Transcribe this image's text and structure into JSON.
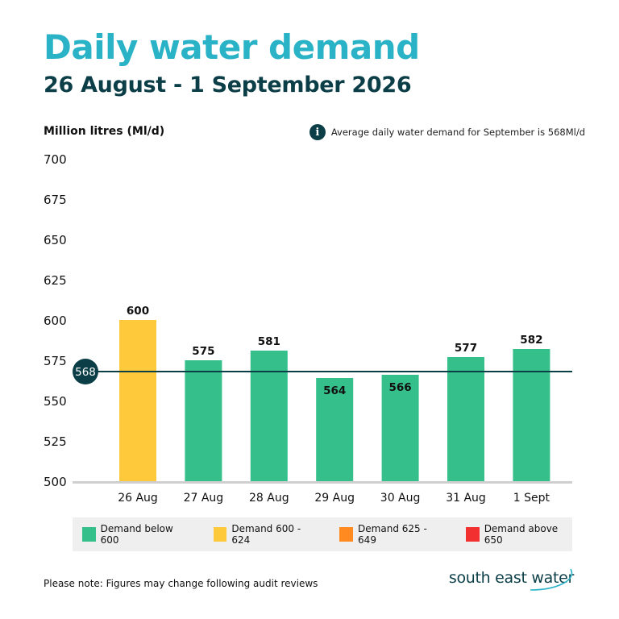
{
  "title": "Daily water demand",
  "subtitle": "26 August - 1 September 2026",
  "unit_label": "Million litres (Ml/d)",
  "info_text": "Average daily water demand for September is 568Ml/d",
  "info_icon": "info-icon",
  "note": "Please note: Figures may change following audit reviews",
  "logo_text": "south east water",
  "chart_data": {
    "type": "bar",
    "categories": [
      "26 Aug",
      "27 Aug",
      "28 Aug",
      "29 Aug",
      "30 Aug",
      "31 Aug",
      "1 Sept"
    ],
    "values": [
      600,
      575,
      581,
      564,
      566,
      577,
      582
    ],
    "bar_colors": [
      "#ffc93c",
      "#35c08b",
      "#35c08b",
      "#35c08b",
      "#35c08b",
      "#35c08b",
      "#35c08b"
    ],
    "ylim": [
      500,
      700
    ],
    "yticks": [
      700,
      675,
      650,
      625,
      600,
      575,
      550,
      525,
      500
    ],
    "grid": false,
    "reference_line": {
      "value": 568,
      "label": "568",
      "color": "#0b3e47"
    },
    "legend_position": "bottom",
    "legend": [
      {
        "label": "Demand below 600",
        "color": "#35c08b"
      },
      {
        "label": "Demand 600 - 624",
        "color": "#ffc93c"
      },
      {
        "label": "Demand 625 - 649",
        "color": "#ff8a1f"
      },
      {
        "label": "Demand above 650",
        "color": "#f2302f"
      }
    ]
  }
}
